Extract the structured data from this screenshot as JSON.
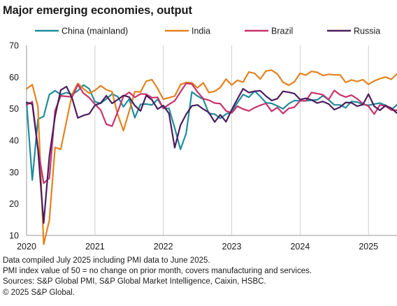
{
  "chart_data": {
    "type": "line",
    "title": "Major emerging economies, output",
    "xlabel": "",
    "ylabel": "",
    "ylim": [
      10,
      70
    ],
    "yticks": [
      10,
      20,
      30,
      40,
      50,
      60,
      70
    ],
    "xlim": [
      "2020-01",
      "2025-06"
    ],
    "xticks": [
      "2020",
      "2021",
      "2022",
      "2023",
      "2024",
      "2025"
    ],
    "grid": "vertical",
    "legend_position": "top",
    "months": [
      "2020-01",
      "2020-02",
      "2020-03",
      "2020-04",
      "2020-05",
      "2020-06",
      "2020-07",
      "2020-08",
      "2020-09",
      "2020-10",
      "2020-11",
      "2020-12",
      "2021-01",
      "2021-02",
      "2021-03",
      "2021-04",
      "2021-05",
      "2021-06",
      "2021-07",
      "2021-08",
      "2021-09",
      "2021-10",
      "2021-11",
      "2021-12",
      "2022-01",
      "2022-02",
      "2022-03",
      "2022-04",
      "2022-05",
      "2022-06",
      "2022-07",
      "2022-08",
      "2022-09",
      "2022-10",
      "2022-11",
      "2022-12",
      "2023-01",
      "2023-02",
      "2023-03",
      "2023-04",
      "2023-05",
      "2023-06",
      "2023-07",
      "2023-08",
      "2023-09",
      "2023-10",
      "2023-11",
      "2023-12",
      "2024-01",
      "2024-02",
      "2024-03",
      "2024-04",
      "2024-05",
      "2024-06",
      "2024-07",
      "2024-08",
      "2024-09",
      "2024-10",
      "2024-11",
      "2024-12",
      "2025-01",
      "2025-02",
      "2025-03",
      "2025-04",
      "2025-05",
      "2025-06"
    ],
    "series": [
      {
        "name": "China (mainland)",
        "color": "#1f8d9b",
        "values": [
          51.9,
          27.5,
          46.7,
          47.6,
          54.5,
          55.7,
          54.5,
          55.1,
          54.5,
          55.7,
          57.5,
          56.3,
          52.2,
          51.7,
          53.1,
          54.7,
          53.8,
          50.6,
          53.1,
          47.2,
          51.4,
          51.5,
          51.2,
          53.0,
          50.1,
          50.1,
          43.9,
          37.2,
          42.2,
          55.3,
          54.0,
          53.0,
          48.5,
          48.3,
          47.0,
          48.3,
          49.1,
          51.9,
          54.5,
          53.6,
          55.6,
          53.9,
          51.9,
          51.7,
          50.9,
          50.0,
          51.6,
          52.6,
          52.5,
          52.5,
          52.7,
          52.8,
          54.1,
          52.8,
          51.2,
          51.2,
          50.3,
          52.3,
          52.1,
          51.4,
          51.1,
          51.5,
          51.8,
          51.1,
          49.6,
          51.3
        ]
      },
      {
        "name": "India",
        "color": "#e2831f",
        "values": [
          56.3,
          57.6,
          50.6,
          7.2,
          14.8,
          37.8,
          37.2,
          46.0,
          54.6,
          58.0,
          56.3,
          54.9,
          55.8,
          57.3,
          56.0,
          55.4,
          48.1,
          43.1,
          49.2,
          55.4,
          55.3,
          58.7,
          59.2,
          56.4,
          53.0,
          53.5,
          54.0,
          57.6,
          58.3,
          58.2,
          56.6,
          58.2,
          55.1,
          55.5,
          56.7,
          59.4,
          57.5,
          59.0,
          58.4,
          61.6,
          61.2,
          59.4,
          61.9,
          62.2,
          61.0,
          58.4,
          57.4,
          58.5,
          61.2,
          60.6,
          61.8,
          61.5,
          60.5,
          60.9,
          60.7,
          60.7,
          58.3,
          59.1,
          58.6,
          59.2,
          57.7,
          58.8,
          59.5,
          60.0,
          59.3,
          61.0
        ]
      },
      {
        "name": "Brazil",
        "color": "#c8336c",
        "values": [
          51.2,
          52.2,
          37.6,
          26.5,
          28.1,
          49.4,
          54.1,
          53.9,
          53.7,
          57.6,
          54.9,
          53.5,
          51.4,
          49.6,
          45.1,
          44.5,
          49.1,
          53.9,
          55.2,
          53.6,
          54.7,
          54.6,
          53.5,
          53.6,
          50.1,
          51.4,
          52.5,
          55.3,
          58.0,
          57.8,
          55.3,
          53.2,
          52.7,
          51.8,
          51.6,
          49.3,
          48.7,
          50.8,
          49.9,
          49.3,
          50.3,
          51.1,
          51.7,
          49.2,
          50.4,
          48.5,
          50.1,
          50.5,
          52.5,
          52.5,
          55.1,
          54.8,
          54.4,
          52.9,
          55.8,
          54.4,
          53.7,
          54.3,
          53.2,
          51.6,
          50.8,
          48.3,
          51.2,
          50.8,
          49.6,
          49.5
        ]
      },
      {
        "name": "Russia",
        "color": "#4b1d5e",
        "values": [
          52.0,
          51.5,
          37.2,
          13.9,
          35.0,
          47.6,
          55.9,
          57.0,
          53.3,
          47.1,
          47.9,
          48.4,
          51.1,
          51.8,
          54.1,
          51.7,
          52.9,
          54.2,
          53.7,
          51.0,
          49.3,
          54.2,
          52.8,
          49.9,
          51.0,
          48.5,
          37.7,
          44.8,
          48.2,
          50.9,
          51.2,
          49.9,
          48.8,
          45.8,
          48.1,
          45.9,
          49.7,
          53.1,
          56.3,
          55.1,
          55.5,
          55.7,
          54.0,
          52.6,
          53.2,
          55.5,
          55.2,
          54.8,
          52.9,
          53.3,
          52.8,
          51.8,
          52.3,
          51.5,
          49.7,
          50.5,
          52.0,
          51.9,
          50.8,
          51.3,
          54.6,
          50.8,
          49.5,
          51.0,
          50.2,
          48.6
        ]
      }
    ]
  },
  "footnotes": [
    "Data compiled July 2025 including PMI data to June 2025.",
    "PMI index value of 50 = no change on prior month, covers manufacturing and services.",
    "Sources: S&P Global PMI, S&P Global Market Intelligence, Caixin, HSBC.",
    "© 2025 S&P Global."
  ]
}
